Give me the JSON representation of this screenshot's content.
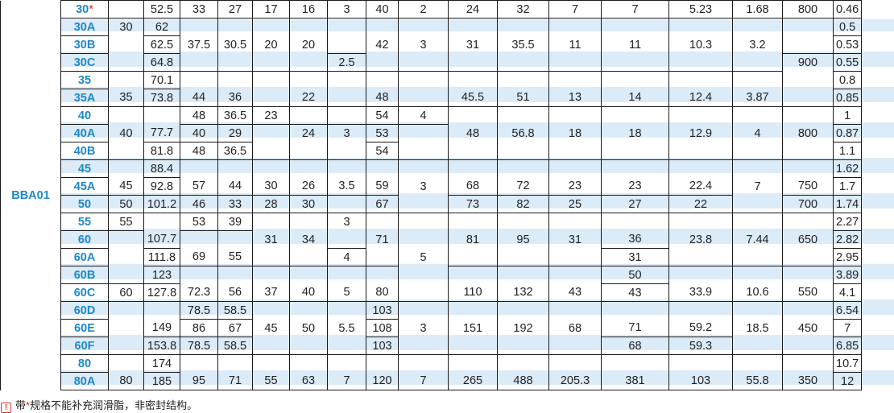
{
  "table": {
    "series": "BBA01",
    "rows": [
      {
        "code": "30",
        "star": "*",
        "cells": [
          "",
          "52.5",
          "33",
          "27",
          "17",
          "16",
          "3",
          "40",
          "2",
          "24",
          "32",
          "7",
          "7",
          "5.23",
          "1.68",
          "800",
          "0.46"
        ]
      },
      {
        "code": "30A",
        "cells": [
          "30",
          "62",
          "",
          "",
          "",
          "",
          "",
          "",
          "",
          "",
          "",
          "",
          "",
          "",
          "",
          "",
          "0.5"
        ]
      },
      {
        "code": "30B",
        "cells": [
          "",
          "62.5",
          "37.5",
          "30.5",
          "20",
          "20",
          "",
          "42",
          "3",
          "31",
          "35.5",
          "11",
          "11",
          "10.3",
          "3.2",
          "",
          "0.53"
        ]
      },
      {
        "code": "30C",
        "cells": [
          "",
          "64.8",
          "",
          "",
          "",
          "",
          "2.5",
          "",
          "",
          "",
          "",
          "",
          "",
          "",
          "",
          "900",
          "0.55"
        ]
      },
      {
        "code": "35",
        "cells": [
          "",
          "70.1",
          "",
          "",
          "",
          "",
          "",
          "",
          "",
          "",
          "",
          "",
          "",
          "",
          "",
          "",
          "0.8"
        ]
      },
      {
        "code": "35A",
        "cells": [
          "35",
          "73.8",
          "44",
          "36",
          "",
          "22",
          "",
          "48",
          "",
          "45.5",
          "51",
          "13",
          "14",
          "12.4",
          "3.87",
          "",
          "0.85"
        ]
      },
      {
        "code": "40",
        "cells": [
          "",
          "",
          "48",
          "36.5",
          "23",
          "",
          "",
          "54",
          "4",
          "",
          "",
          "",
          "",
          "",
          "",
          "",
          "1"
        ]
      },
      {
        "code": "40A",
        "cells": [
          "40",
          "77.7",
          "40",
          "29",
          "",
          "24",
          "3",
          "53",
          "",
          "48",
          "56.8",
          "18",
          "18",
          "12.9",
          "4",
          "800",
          "0.87"
        ]
      },
      {
        "code": "40B",
        "cells": [
          "",
          "81.8",
          "48",
          "36.5",
          "",
          "",
          "",
          "54",
          "",
          "",
          "",
          "",
          "",
          "",
          "",
          "",
          "1.1"
        ]
      },
      {
        "code": "45",
        "cells": [
          "",
          "88.4",
          "",
          "",
          "",
          "",
          "",
          "",
          "",
          "",
          "",
          "",
          "",
          "",
          "",
          "",
          "1.62"
        ]
      },
      {
        "code": "45A",
        "cells": [
          "45",
          "92.8",
          "57",
          "44",
          "30",
          "26",
          "3.5",
          "59",
          "3",
          "68",
          "72",
          "23",
          "23",
          "22.4",
          "7",
          "750",
          "1.7"
        ]
      },
      {
        "code": "50",
        "cells": [
          "50",
          "101.2",
          "46",
          "33",
          "28",
          "30",
          "",
          "67",
          "",
          "73",
          "82",
          "25",
          "27",
          "22",
          "",
          "700",
          "1.74"
        ]
      },
      {
        "code": "55",
        "cells": [
          "55",
          "",
          "53",
          "39",
          "",
          "",
          "3",
          "",
          "",
          "",
          "",
          "",
          "",
          "",
          "",
          "",
          "2.27"
        ]
      },
      {
        "code": "60",
        "cells": [
          "",
          "107.7",
          "",
          "",
          "31",
          "34",
          "",
          "71",
          "",
          "81",
          "95",
          "31",
          "36",
          "23.8",
          "7.44",
          "650",
          "2.82"
        ]
      },
      {
        "code": "60A",
        "cells": [
          "",
          "111.8",
          "69",
          "55",
          "",
          "",
          "4",
          "",
          "5",
          "",
          "",
          "",
          "31",
          "",
          "",
          "",
          "2.95"
        ]
      },
      {
        "code": "60B",
        "cells": [
          "",
          "123",
          "",
          "",
          "",
          "",
          "",
          "",
          "",
          "",
          "",
          "",
          "50",
          "",
          "",
          "",
          "3.89"
        ]
      },
      {
        "code": "60C",
        "cells": [
          "60",
          "127.8",
          "72.3",
          "56",
          "37",
          "40",
          "5",
          "80",
          "",
          "110",
          "132",
          "43",
          "43",
          "33.9",
          "10.6",
          "550",
          "4.1"
        ]
      },
      {
        "code": "60D",
        "cells": [
          "",
          "",
          "78.5",
          "58.5",
          "",
          "",
          "",
          "103",
          "",
          "",
          "",
          "",
          "",
          "",
          "",
          "",
          "6.54"
        ]
      },
      {
        "code": "60E",
        "cells": [
          "",
          "149",
          "86",
          "67",
          "45",
          "50",
          "5.5",
          "108",
          "3",
          "151",
          "192",
          "68",
          "71",
          "59.2",
          "18.5",
          "450",
          "7"
        ]
      },
      {
        "code": "60F",
        "cells": [
          "",
          "153.8",
          "78.5",
          "58.5",
          "",
          "",
          "",
          "103",
          "",
          "",
          "",
          "",
          "68",
          "59.3",
          "",
          "",
          "6.85"
        ]
      },
      {
        "code": "80",
        "cells": [
          "",
          "174",
          "",
          "",
          "",
          "",
          "",
          "",
          "",
          "",
          "",
          "",
          "",
          "",
          "",
          "",
          "10.7"
        ]
      },
      {
        "code": "80A",
        "cells": [
          "80",
          "185",
          "95",
          "71",
          "55",
          "63",
          "7",
          "120",
          "7",
          "265",
          "488",
          "205.3",
          "381",
          "103",
          "55.8",
          "350",
          "12"
        ]
      }
    ]
  },
  "note": {
    "icon": "warning-icon",
    "prefix": "带",
    "star": "*",
    "text": "规格不能补充润滑脂，非密封结构。"
  },
  "colors": {
    "code": "#1e88c8",
    "band": "#dcebf8",
    "star": "#e02020"
  }
}
